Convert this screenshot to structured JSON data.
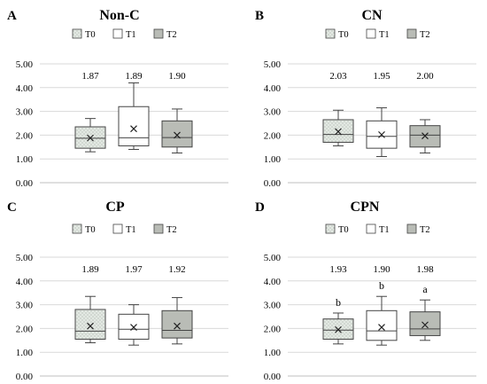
{
  "colors": {
    "T0": "#e3e9e3",
    "T1": "#ffffff",
    "T2": "#b9bcb6",
    "stroke": "#444444",
    "grid": "#d9d9d9"
  },
  "chart_data": [
    {
      "type": "box",
      "panel": "A",
      "title": "Non-C",
      "legend": [
        "T0",
        "T1",
        "T2"
      ],
      "yticks": [
        "0.00",
        "1.00",
        "2.00",
        "3.00",
        "4.00",
        "5.00"
      ],
      "ylim": [
        0,
        5
      ],
      "grid": true,
      "series": [
        {
          "name": "T0",
          "min": 1.3,
          "q1": 1.45,
          "median": 1.87,
          "q3": 2.35,
          "max": 2.7,
          "mean": 1.88
        },
        {
          "name": "T1",
          "min": 1.4,
          "q1": 1.55,
          "median": 1.89,
          "q3": 3.2,
          "max": 4.2,
          "mean": 2.27
        },
        {
          "name": "T2",
          "min": 1.25,
          "q1": 1.5,
          "median": 1.9,
          "q3": 2.6,
          "max": 3.1,
          "mean": 2.0
        }
      ],
      "median_labels": [
        "1.87",
        "1.89",
        "1.90"
      ],
      "sig_letters": [
        "",
        "",
        ""
      ]
    },
    {
      "type": "box",
      "panel": "B",
      "title": "CN",
      "legend": [
        "T0",
        "T1",
        "T2"
      ],
      "yticks": [
        "0.00",
        "1.00",
        "2.00",
        "3.00",
        "4.00",
        "5.00"
      ],
      "ylim": [
        0,
        5
      ],
      "grid": true,
      "series": [
        {
          "name": "T0",
          "min": 1.55,
          "q1": 1.7,
          "median": 2.03,
          "q3": 2.65,
          "max": 3.05,
          "mean": 2.15
        },
        {
          "name": "T1",
          "min": 1.1,
          "q1": 1.45,
          "median": 1.95,
          "q3": 2.6,
          "max": 3.15,
          "mean": 2.02
        },
        {
          "name": "T2",
          "min": 1.25,
          "q1": 1.5,
          "median": 2.0,
          "q3": 2.4,
          "max": 2.65,
          "mean": 1.97
        }
      ],
      "median_labels": [
        "2.03",
        "1.95",
        "2.00"
      ],
      "sig_letters": [
        "",
        "",
        ""
      ]
    },
    {
      "type": "box",
      "panel": "C",
      "title": "CP",
      "legend": [
        "T0",
        "T1",
        "T2"
      ],
      "yticks": [
        "0.00",
        "1.00",
        "2.00",
        "3.00",
        "4.00",
        "5.00"
      ],
      "ylim": [
        0,
        5
      ],
      "grid": true,
      "series": [
        {
          "name": "T0",
          "min": 1.4,
          "q1": 1.55,
          "median": 1.89,
          "q3": 2.8,
          "max": 3.35,
          "mean": 2.1
        },
        {
          "name": "T1",
          "min": 1.3,
          "q1": 1.55,
          "median": 1.97,
          "q3": 2.6,
          "max": 3.0,
          "mean": 2.05
        },
        {
          "name": "T2",
          "min": 1.35,
          "q1": 1.6,
          "median": 1.92,
          "q3": 2.75,
          "max": 3.3,
          "mean": 2.1
        }
      ],
      "median_labels": [
        "1.89",
        "1.97",
        "1.92"
      ],
      "sig_letters": [
        "",
        "",
        ""
      ]
    },
    {
      "type": "box",
      "panel": "D",
      "title": "CPN",
      "legend": [
        "T0",
        "T1",
        "T2"
      ],
      "yticks": [
        "0.00",
        "1.00",
        "2.00",
        "3.00",
        "4.00",
        "5.00"
      ],
      "ylim": [
        0,
        5
      ],
      "grid": true,
      "series": [
        {
          "name": "T0",
          "min": 1.35,
          "q1": 1.55,
          "median": 1.93,
          "q3": 2.4,
          "max": 2.65,
          "mean": 1.95
        },
        {
          "name": "T1",
          "min": 1.3,
          "q1": 1.5,
          "median": 1.9,
          "q3": 2.75,
          "max": 3.35,
          "mean": 2.05
        },
        {
          "name": "T2",
          "min": 1.5,
          "q1": 1.7,
          "median": 1.98,
          "q3": 2.7,
          "max": 3.2,
          "mean": 2.15
        }
      ],
      "median_labels": [
        "1.93",
        "1.90",
        "1.98"
      ],
      "sig_letters": [
        "b",
        "b",
        "a"
      ]
    }
  ]
}
